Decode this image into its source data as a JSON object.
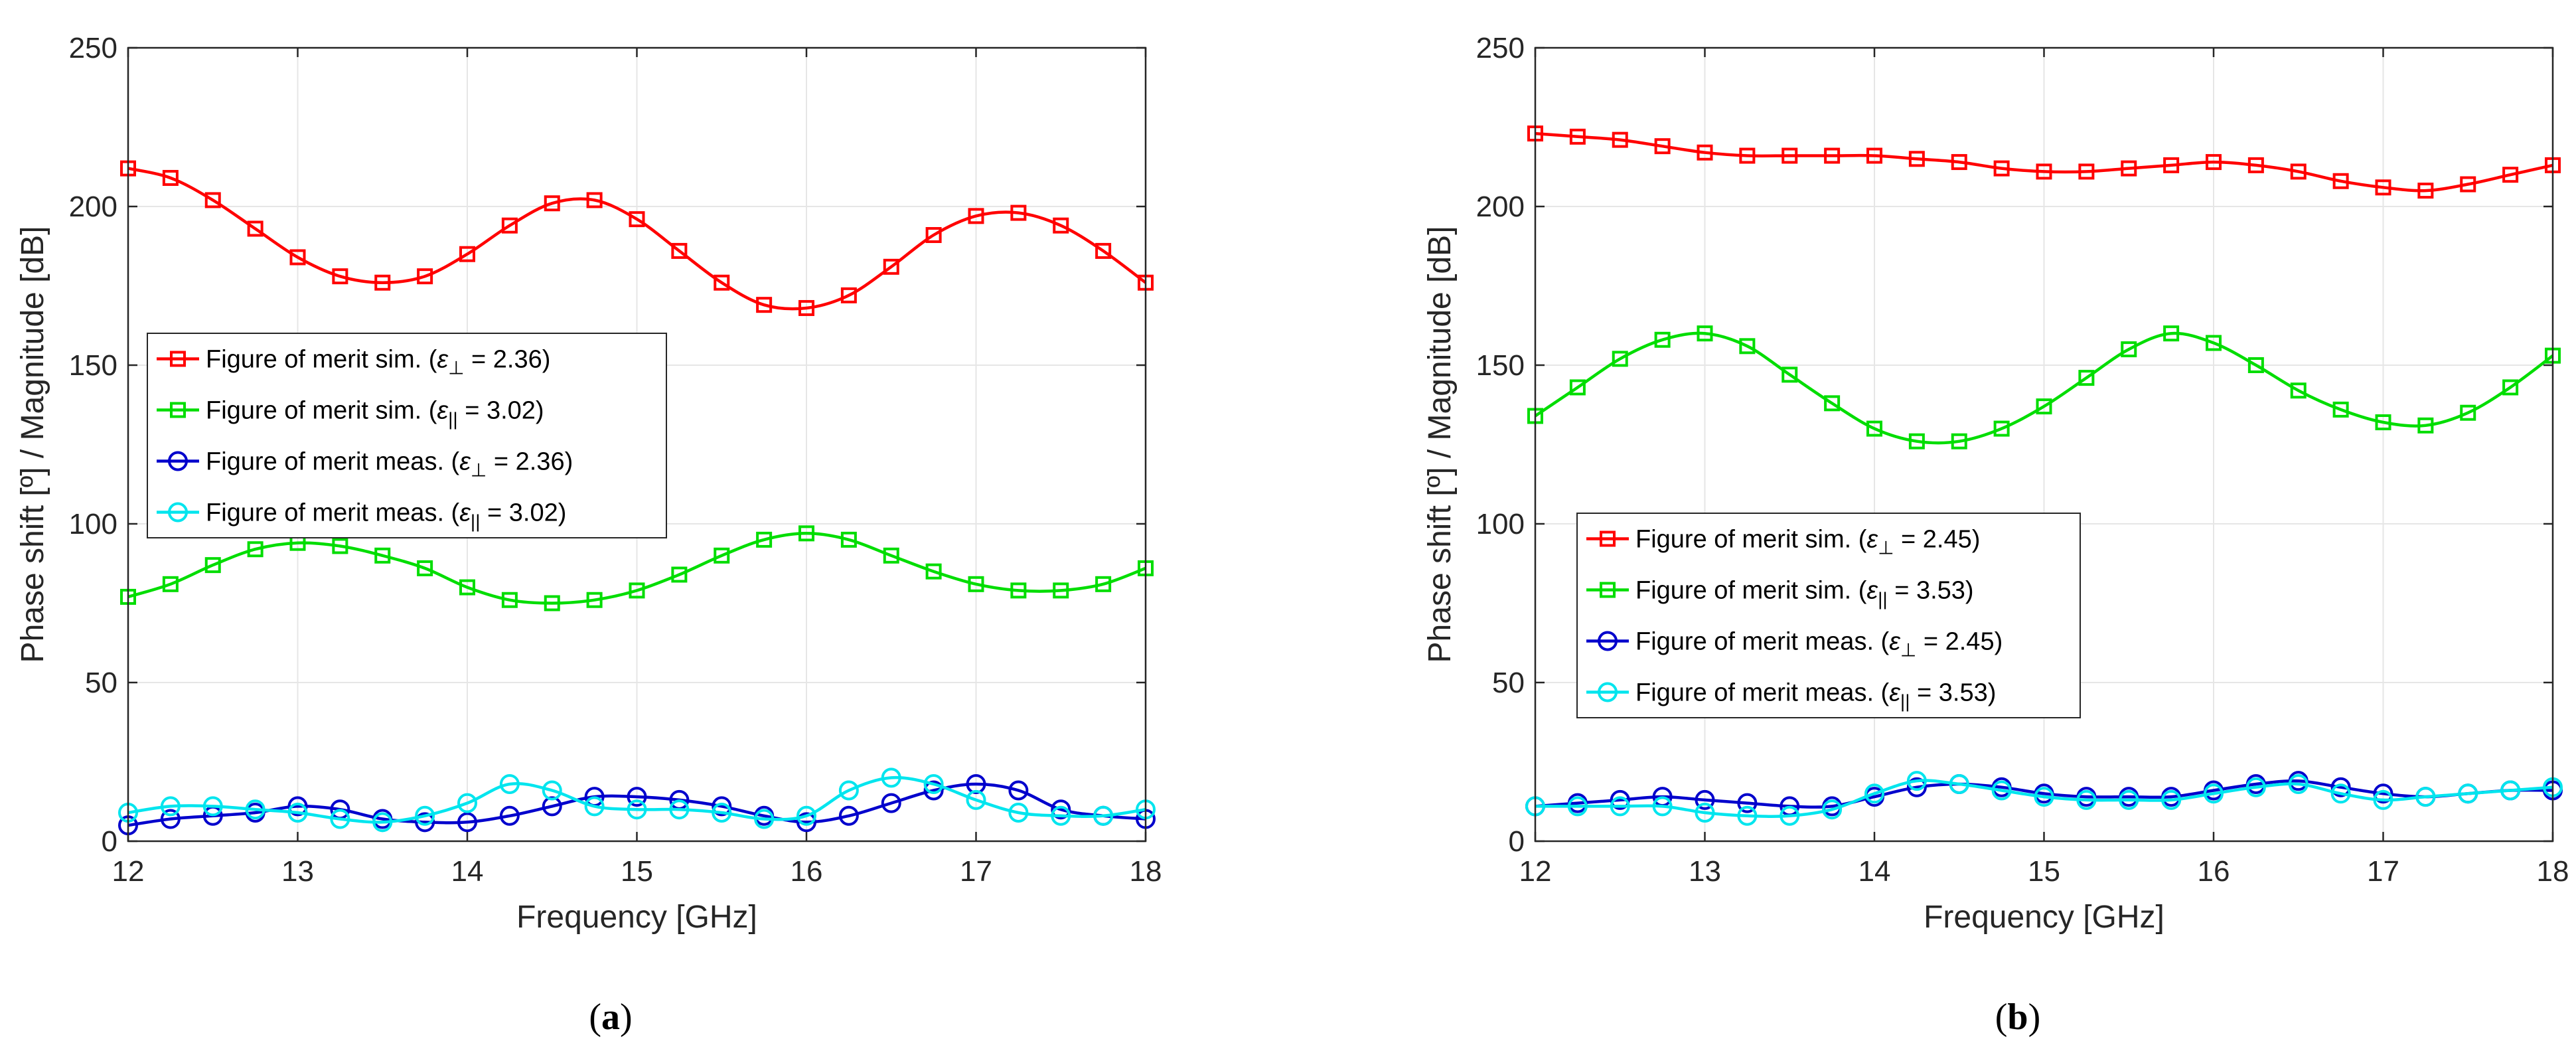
{
  "colors": {
    "sim_perp": "#ff0000",
    "sim_par": "#00dd00",
    "meas_perp": "#0000cc",
    "meas_par": "#00e5ee"
  },
  "chart_data": [
    {
      "type": "line",
      "caption": "(a)",
      "caption_letter": "a",
      "xlabel": "Frequency [GHz]",
      "ylabel": "Phase shift [º] / Magnitude [dB]",
      "xlim": [
        12,
        18
      ],
      "ylim": [
        0,
        250
      ],
      "xticks": [
        12,
        13,
        14,
        15,
        16,
        17,
        18
      ],
      "yticks": [
        0,
        50,
        100,
        150,
        200,
        250
      ],
      "grid": true,
      "legend_position": "middle-left",
      "series": [
        {
          "name": "Figure of merit sim. (ε⊥ = 2.36)",
          "label_main": "Figure of merit sim. (",
          "label_eps": "ε",
          "label_sub": "⊥",
          "label_value": " = 2.36)",
          "marker": "square",
          "color_key": "sim_perp",
          "x": [
            12.0,
            12.25,
            12.5,
            12.75,
            13.0,
            13.25,
            13.5,
            13.75,
            14.0,
            14.25,
            14.5,
            14.75,
            15.0,
            15.25,
            15.5,
            15.75,
            16.0,
            16.25,
            16.5,
            16.75,
            17.0,
            17.25,
            17.5,
            17.75,
            18.0
          ],
          "values": [
            212,
            209,
            202,
            193,
            184,
            178,
            176,
            178,
            185,
            194,
            201,
            202,
            196,
            186,
            176,
            169,
            168,
            172,
            181,
            191,
            197,
            198,
            194,
            186,
            176
          ]
        },
        {
          "name": "Figure of merit sim. (ε∥ = 3.02)",
          "label_main": "Figure of merit sim. (",
          "label_eps": "ε",
          "label_sub": "||",
          "label_value": " = 3.02)",
          "marker": "square",
          "color_key": "sim_par",
          "x": [
            12.0,
            12.25,
            12.5,
            12.75,
            13.0,
            13.25,
            13.5,
            13.75,
            14.0,
            14.25,
            14.5,
            14.75,
            15.0,
            15.25,
            15.5,
            15.75,
            16.0,
            16.25,
            16.5,
            16.75,
            17.0,
            17.25,
            17.5,
            17.75,
            18.0
          ],
          "values": [
            77,
            81,
            87,
            92,
            94,
            93,
            90,
            86,
            80,
            76,
            75,
            76,
            79,
            84,
            90,
            95,
            97,
            95,
            90,
            85,
            81,
            79,
            79,
            81,
            86
          ]
        },
        {
          "name": "Figure of merit meas. (ε⊥ = 2.36)",
          "label_main": "Figure of merit meas. (",
          "label_eps": "ε",
          "label_sub": "⊥",
          "label_value": " = 2.36)",
          "marker": "circle",
          "color_key": "meas_perp",
          "x": [
            12.0,
            12.25,
            12.5,
            12.75,
            13.0,
            13.25,
            13.5,
            13.75,
            14.0,
            14.25,
            14.5,
            14.75,
            15.0,
            15.25,
            15.5,
            15.75,
            16.0,
            16.25,
            16.5,
            16.75,
            17.0,
            17.25,
            17.5,
            17.75,
            18.0
          ],
          "values": [
            5,
            7,
            8,
            9,
            11,
            10,
            7,
            6,
            6,
            8,
            11,
            14,
            14,
            13,
            11,
            8,
            6,
            8,
            12,
            16,
            18,
            16,
            10,
            8,
            7
          ]
        },
        {
          "name": "Figure of merit meas. (ε∥ = 3.02)",
          "label_main": "Figure of merit meas. (",
          "label_eps": "ε",
          "label_sub": "||",
          "label_value": " = 3.02)",
          "marker": "circle",
          "color_key": "meas_par",
          "x": [
            12.0,
            12.25,
            12.5,
            12.75,
            13.0,
            13.25,
            13.5,
            13.75,
            14.0,
            14.25,
            14.5,
            14.75,
            15.0,
            15.25,
            15.5,
            15.75,
            16.0,
            16.25,
            16.5,
            16.75,
            17.0,
            17.25,
            17.5,
            17.75,
            18.0
          ],
          "values": [
            9,
            11,
            11,
            10,
            9,
            7,
            6,
            8,
            12,
            18,
            16,
            11,
            10,
            10,
            9,
            7,
            8,
            16,
            20,
            18,
            13,
            9,
            8,
            8,
            10
          ]
        }
      ]
    },
    {
      "type": "line",
      "caption": "(b)",
      "caption_letter": "b",
      "xlabel": "Frequency [GHz]",
      "ylabel": "Phase shift [º] / Magnitude [dB]",
      "xlim": [
        12,
        18
      ],
      "ylim": [
        0,
        250
      ],
      "xticks": [
        12,
        13,
        14,
        15,
        16,
        17,
        18
      ],
      "yticks": [
        0,
        50,
        100,
        150,
        200,
        250
      ],
      "grid": true,
      "legend_position": "lower-left",
      "series": [
        {
          "name": "Figure of merit sim. (ε⊥ = 2.45)",
          "label_main": "Figure of merit sim. (",
          "label_eps": "ε",
          "label_sub": "⊥",
          "label_value": " = 2.45)",
          "marker": "square",
          "color_key": "sim_perp",
          "x": [
            12.0,
            12.25,
            12.5,
            12.75,
            13.0,
            13.25,
            13.5,
            13.75,
            14.0,
            14.25,
            14.5,
            14.75,
            15.0,
            15.25,
            15.5,
            15.75,
            16.0,
            16.25,
            16.5,
            16.75,
            17.0,
            17.25,
            17.5,
            17.75,
            18.0
          ],
          "values": [
            223,
            222,
            221,
            219,
            217,
            216,
            216,
            216,
            216,
            215,
            214,
            212,
            211,
            211,
            212,
            213,
            214,
            213,
            211,
            208,
            206,
            205,
            207,
            210,
            213
          ]
        },
        {
          "name": "Figure of merit sim. (ε∥ = 3.53)",
          "label_main": "Figure of merit sim. (",
          "label_eps": "ε",
          "label_sub": "||",
          "label_value": " = 3.53)",
          "marker": "square",
          "color_key": "sim_par",
          "x": [
            12.0,
            12.25,
            12.5,
            12.75,
            13.0,
            13.25,
            13.5,
            13.75,
            14.0,
            14.25,
            14.5,
            14.75,
            15.0,
            15.25,
            15.5,
            15.75,
            16.0,
            16.25,
            16.5,
            16.75,
            17.0,
            17.25,
            17.5,
            17.75,
            18.0
          ],
          "values": [
            134,
            143,
            152,
            158,
            160,
            156,
            147,
            138,
            130,
            126,
            126,
            130,
            137,
            146,
            155,
            160,
            157,
            150,
            142,
            136,
            132,
            131,
            135,
            143,
            153
          ]
        },
        {
          "name": "Figure of merit meas. (ε⊥ = 2.45)",
          "label_main": "Figure of merit meas. (",
          "label_eps": "ε",
          "label_sub": "⊥",
          "label_value": " = 2.45)",
          "marker": "circle",
          "color_key": "meas_perp",
          "x": [
            12.0,
            12.25,
            12.5,
            12.75,
            13.0,
            13.25,
            13.5,
            13.75,
            14.0,
            14.25,
            14.5,
            14.75,
            15.0,
            15.25,
            15.5,
            15.75,
            16.0,
            16.25,
            16.5,
            16.75,
            17.0,
            17.25,
            17.5,
            17.75,
            18.0
          ],
          "values": [
            11,
            12,
            13,
            14,
            13,
            12,
            11,
            11,
            14,
            17,
            18,
            17,
            15,
            14,
            14,
            14,
            16,
            18,
            19,
            17,
            15,
            14,
            15,
            16,
            16
          ]
        },
        {
          "name": "Figure of merit meas. (ε∥ = 3.53)",
          "label_main": "Figure of merit meas. (",
          "label_eps": "ε",
          "label_sub": "||",
          "label_value": " = 3.53)",
          "marker": "circle",
          "color_key": "meas_par",
          "x": [
            12.0,
            12.25,
            12.5,
            12.75,
            13.0,
            13.25,
            13.5,
            13.75,
            14.0,
            14.25,
            14.5,
            14.75,
            15.0,
            15.25,
            15.5,
            15.75,
            16.0,
            16.25,
            16.5,
            16.75,
            17.0,
            17.25,
            17.5,
            17.75,
            18.0
          ],
          "values": [
            11,
            11,
            11,
            11,
            9,
            8,
            8,
            10,
            15,
            19,
            18,
            16,
            14,
            13,
            13,
            13,
            15,
            17,
            18,
            15,
            13,
            14,
            15,
            16,
            17
          ]
        }
      ]
    }
  ]
}
